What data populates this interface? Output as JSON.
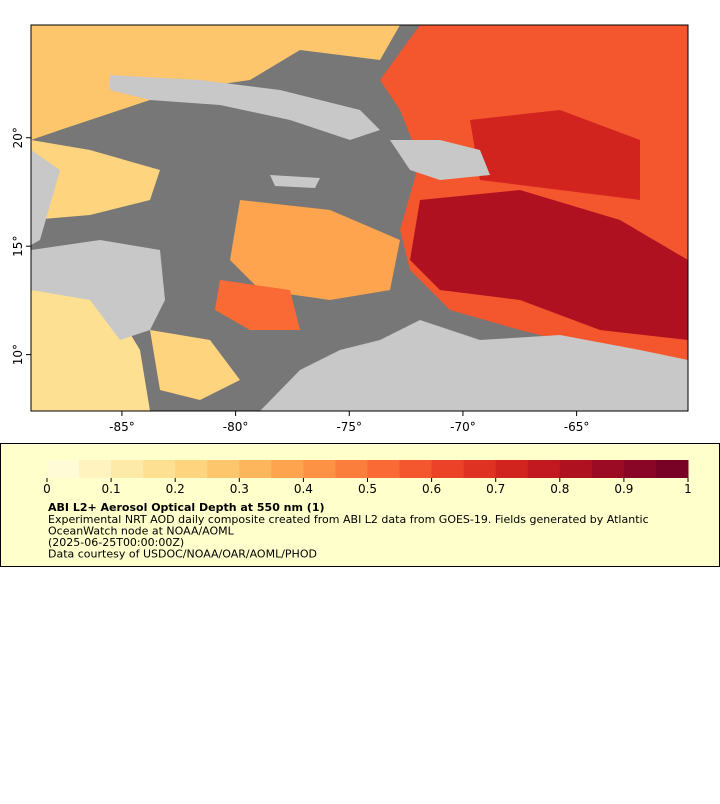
{
  "map": {
    "xlim": [
      -89,
      -60.1
    ],
    "ylim": [
      7.4,
      25.2
    ],
    "xticks": [
      {
        "value": -85,
        "label": "-85°"
      },
      {
        "value": -80,
        "label": "-80°"
      },
      {
        "value": -75,
        "label": "-75°"
      },
      {
        "value": -70,
        "label": "-70°"
      },
      {
        "value": -65,
        "label": "-65°"
      }
    ],
    "yticks": [
      {
        "value": 10,
        "label": "10°"
      },
      {
        "value": 15,
        "label": "15°"
      },
      {
        "value": 20,
        "label": "20°"
      }
    ],
    "colorbar": {
      "lim": [
        0,
        1
      ],
      "ticks": [
        0,
        0.1,
        0.2,
        0.3,
        0.4,
        0.5,
        0.6,
        0.7,
        0.8,
        0.9,
        1
      ],
      "colors": [
        "#fffbd6",
        "#fff3c0",
        "#feeaa8",
        "#fee093",
        "#fed47e",
        "#fec66c",
        "#feb65c",
        "#fea44f",
        "#fd9244",
        "#fc7e3c",
        "#f96a35",
        "#f4562e",
        "#ec4228",
        "#e03222",
        "#d2241f",
        "#c2181f",
        "#b01121",
        "#9c0b24",
        "#8a0626",
        "#780226"
      ]
    },
    "title": "ABI L2+ Aerosol Optical Depth at 550 nm (1)",
    "lines": [
      "Experimental NRT AOD daily composite created from ABI L2 data from GOES-19. Fields generated by Atlantic",
      "OceanWatch node at NOAA/AOML",
      "(2025-06-25T00:00:00Z)",
      "Data courtesy of USDOC/NOAA/OAR/AOML/PHOD"
    ]
  }
}
